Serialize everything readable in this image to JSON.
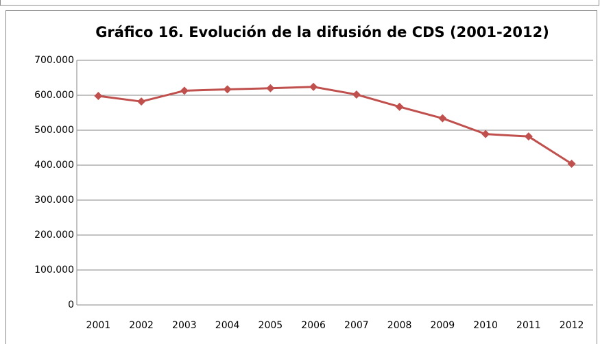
{
  "chart_data": {
    "type": "line",
    "title": "Gráfico 16. Evolución de la difusión de CDS (2001-2012)",
    "categories": [
      "2001",
      "2002",
      "2003",
      "2004",
      "2005",
      "2006",
      "2007",
      "2008",
      "2009",
      "2010",
      "2011",
      "2012"
    ],
    "series": [
      {
        "name": "CDS",
        "color": "#c0504d",
        "values": [
          598000,
          582000,
          613000,
          617000,
          620000,
          624000,
          602000,
          567000,
          534000,
          489000,
          482000,
          404000
        ]
      }
    ],
    "ylim": [
      0,
      700000
    ],
    "yticks": [
      0,
      {
        "value": 100000,
        "label": "100.000"
      },
      {
        "value": 200000,
        "label": "200.000"
      },
      {
        "value": 300000,
        "label": "300.000"
      },
      {
        "value": 400000,
        "label": "400.000"
      },
      {
        "value": 500000,
        "label": "500.000"
      },
      {
        "value": 600000,
        "label": "600.000"
      },
      {
        "value": 700000,
        "label": "700.000"
      }
    ],
    "grid": true
  }
}
